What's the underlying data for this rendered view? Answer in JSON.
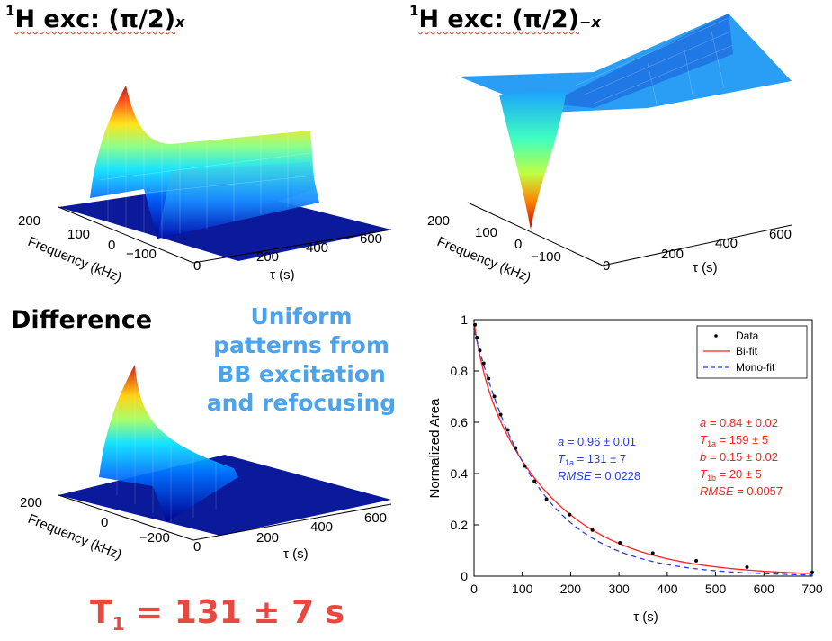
{
  "titles": {
    "top_left_prefix": "1",
    "top_left_main": "H exc: (π/2)",
    "top_left_sub": "x",
    "top_right_prefix": "1",
    "top_right_main": "H exc: (π/2)",
    "top_right_sub": "−x",
    "difference": "Difference"
  },
  "annotation": {
    "lines": [
      "Uniform",
      "patterns from",
      "BB excitation",
      "and refocusing"
    ]
  },
  "result": {
    "prefix": "T",
    "sub": "1",
    "value": " = 131 ± 7 s"
  },
  "surfaces": {
    "top_left": {
      "freq_ticks": [
        "200",
        "100",
        "0",
        "−100"
      ],
      "tau_ticks": [
        "0",
        "200",
        "400",
        "600"
      ],
      "freq_label": "Frequency (kHz)",
      "tau_label": "τ (s)"
    },
    "top_right": {
      "freq_ticks": [
        "200",
        "100",
        "0",
        "−100"
      ],
      "tau_ticks": [
        "0",
        "200",
        "400",
        "600"
      ],
      "freq_label": "Frequency (kHz)",
      "tau_label": "τ (s)"
    },
    "bottom_left": {
      "freq_ticks": [
        "200",
        "0",
        "−200"
      ],
      "tau_ticks": [
        "0",
        "200",
        "400",
        "600"
      ],
      "freq_label": "Frequency (kHz)",
      "tau_label": "τ (s)"
    }
  },
  "chart_data": {
    "type": "scatter",
    "title": "",
    "xlabel": "τ (s)",
    "ylabel": "Normalized Area",
    "xlim": [
      0,
      700
    ],
    "ylim": [
      0,
      1
    ],
    "xticks": [
      "0",
      "100",
      "200",
      "300",
      "400",
      "500",
      "600",
      "700"
    ],
    "yticks": [
      "0",
      "0.2",
      "0.4",
      "0.6",
      "0.8",
      "1"
    ],
    "legend": [
      "Data",
      "Bi-fit",
      "Mono-fit"
    ],
    "legend_position": "top-right",
    "series": [
      {
        "name": "Data",
        "color": "#000000",
        "x": [
          2,
          6,
          12,
          20,
          30,
          42,
          55,
          70,
          86,
          105,
          125,
          150,
          198,
          245,
          302,
          370,
          460,
          565,
          700
        ],
        "y": [
          0.98,
          0.93,
          0.88,
          0.83,
          0.77,
          0.7,
          0.63,
          0.57,
          0.5,
          0.43,
          0.37,
          0.3,
          0.24,
          0.18,
          0.13,
          0.09,
          0.06,
          0.035,
          0.015
        ]
      },
      {
        "name": "Bi-fit",
        "color": "#ff2020",
        "params": {
          "a": 0.84,
          "T1a": 159,
          "b": 0.15,
          "T1b": 20
        }
      },
      {
        "name": "Mono-fit",
        "color": "#2a3fd6",
        "params": {
          "a": 0.96,
          "T1a": 131
        }
      }
    ],
    "annotations": {
      "mono": [
        {
          "pre": "a",
          "post": " = 0.96 ± 0.01"
        },
        {
          "pre": "T",
          "sub": "1a",
          "post": " = 131 ± 7"
        },
        {
          "pre": "RMSE",
          "post": " = 0.0228"
        }
      ],
      "bi": [
        {
          "pre": "a",
          "post": " = 0.84 ± 0.02"
        },
        {
          "pre": "T",
          "sub": "1a",
          "post": " = 159 ± 5"
        },
        {
          "pre": "b",
          "post": " = 0.15 ± 0.02"
        },
        {
          "pre": "T",
          "sub": "1b",
          "post": " = 20 ± 5"
        },
        {
          "pre": "RMSE",
          "post": " = 0.0057"
        }
      ],
      "mono_color": "#2a3fd6",
      "bi_color": "#ff2020"
    }
  }
}
